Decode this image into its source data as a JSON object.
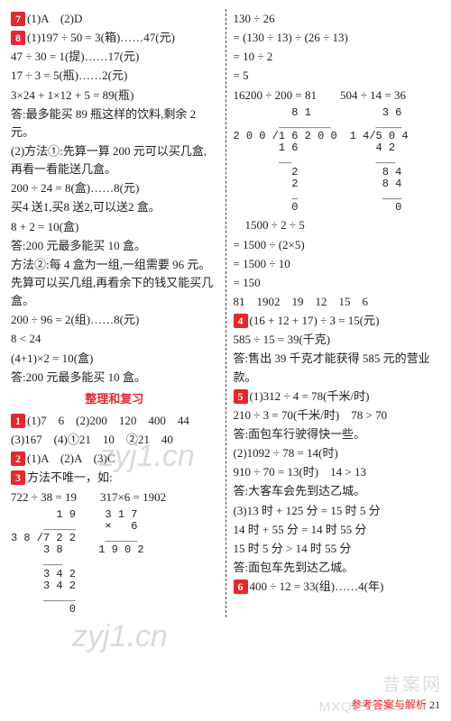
{
  "left": {
    "q7": "(1)A　(2)D",
    "q8a": "(1)197 ÷ 50 = 3(箱)……47(元)",
    "l01": "47 ÷ 30 = 1(提)……17(元)",
    "l02": "17 ÷ 3 = 5(瓶)……2(元)",
    "l03": "3×24 + 1×12 + 5 = 89(瓶)",
    "l04": "答:最多能买 89 瓶这样的饮料,剩余 2 元。",
    "l05": "(2)方法①:先算一算 200 元可以买几盒,再看一看能送几盒。",
    "l06": "200 ÷ 24 = 8(盒)……8(元)",
    "l07": "买4 送1,买8 送2,可以送2 盒。",
    "l08": "8 + 2 = 10(盒)",
    "l09": "答:200 元最多能买 10 盒。",
    "l10": "方法②:每 4 盒为一组,一组需要 96 元。先算可以买几组,再看余下的钱又能买几盒。",
    "l11": "200 ÷ 96 = 2(组)……8(元)",
    "l12": "8 < 24",
    "l13": "(4+1)×2 = 10(盒)",
    "l14": "答:200 元最多能买 10 盒。",
    "sect": "整理和复习",
    "q1": "(1)7　6　(2)200　120　400　44",
    "q1b": "(3)167　(4)①21　10　②21　40",
    "q2": "(1)A　(2)A　(3)C",
    "q3": "方法不唯一，如:",
    "q3a": "722 ÷ 38 = 19　　317×6 = 1902",
    "div1": "       1 9\n     _____\n3 8 /7 2 2\n     3 8\n     ___\n     3 4 2\n     3 4 2\n     _____\n         0",
    "mul1": "  3 1 7\n  ×   6\n  _____\n 1 9 0 2"
  },
  "right": {
    "r00": "130 ÷ 26",
    "r01": "= (130 ÷ 13) ÷ (26 ÷ 13)",
    "r02": "= 10 ÷ 2",
    "r03": "= 5",
    "r04a": "16200 ÷ 200 = 81",
    "r04b": "504 ÷ 14 = 36",
    "div2": "         8 1\n       ________\n2 0 0 /1 6 2 0 0\n       1 6\n       __\n         2\n         2\n         _\n         0",
    "div3": "     3 6\n    ____\n1 4/5 0 4\n    4 2\n    ___\n     8 4\n     8 4\n     ___\n       0",
    "r05": "　1500 ÷ 2 ÷ 5",
    "r06": "= 1500 ÷ (2×5)",
    "r07": "= 1500 ÷ 10",
    "r08": "= 150",
    "r09": "81　1902　19　12　15　6",
    "q4": "(16 + 12 + 17) ÷ 3 = 15(元)",
    "r10": "585 ÷ 15 = 39(千克)",
    "r11": "答:售出 39 千克才能获得 585 元的营业款。",
    "q5": "(1)312 ÷ 4 = 78(千米/时)",
    "r12": "210 ÷ 3 = 70(千米/时)　78 > 70",
    "r13": "答:面包车行驶得快一些。",
    "r14": "(2)1092 ÷ 78 = 14(时)",
    "r15": "910 ÷ 70 = 13(时)　14 > 13",
    "r16": "答:大客车会先到达乙城。",
    "r17": "(3)13 时 + 125 分 = 15 时 5 分",
    "r18": "14 时 + 55 分 = 14 时 55 分",
    "r19": "15 时 5 分 > 14 时 55 分",
    "r20": "答:面包车先到达乙城。",
    "q6": "400 ÷ 12 = 33(组)……4(年)"
  },
  "footer": {
    "label": "参考答案与解析",
    "page": "21"
  },
  "wm": {
    "zy": "zyj1.cn",
    "brand": "昔案网",
    "mx": "MXQE.COM"
  }
}
